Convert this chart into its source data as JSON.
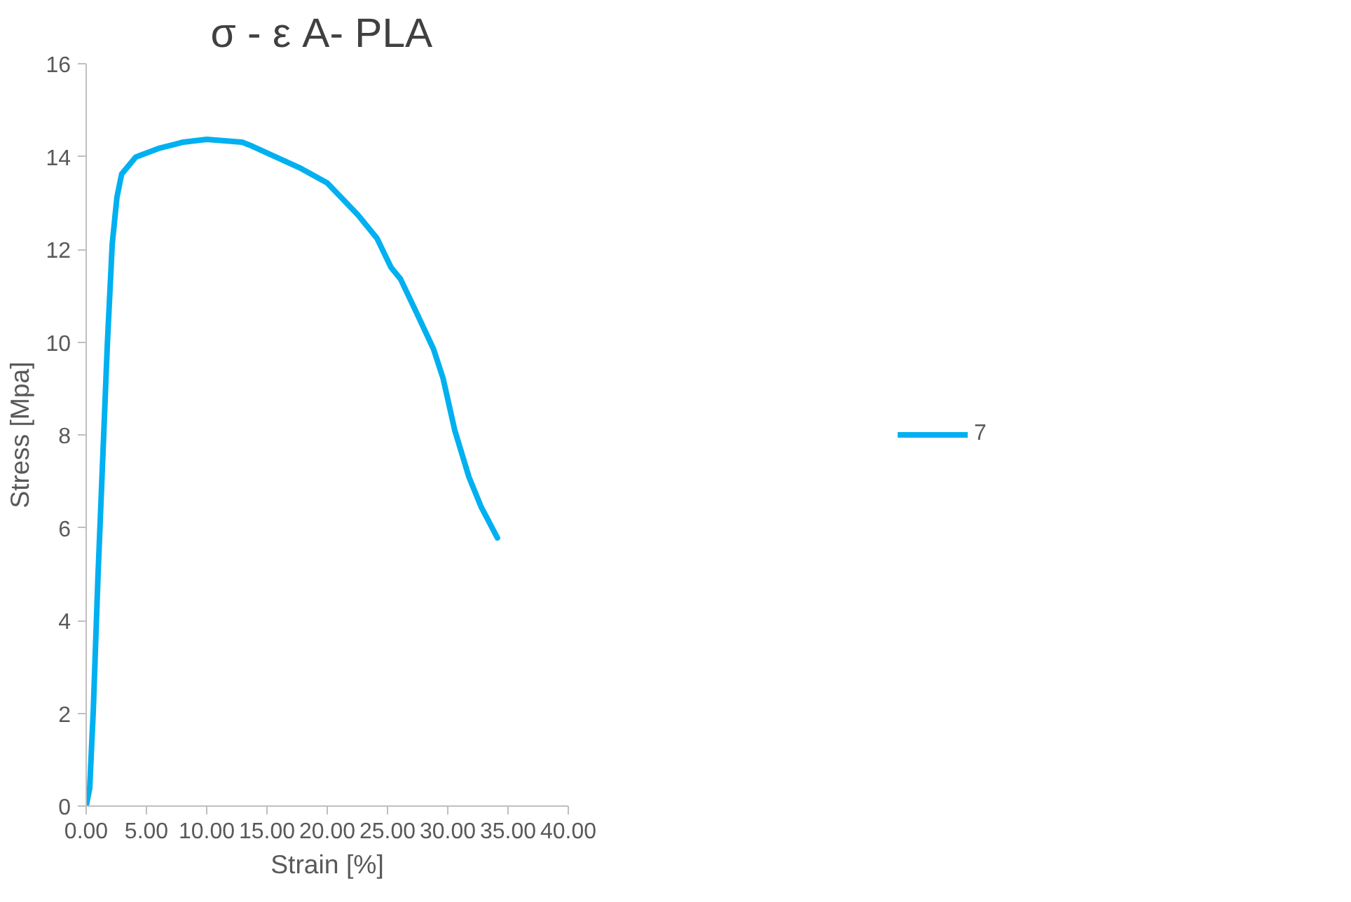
{
  "chart_data": {
    "type": "line",
    "title": "σ - ε  A- PLA",
    "xlabel": "Strain [%]",
    "ylabel": "Stress [Mpa]",
    "xlim": [
      0,
      40
    ],
    "ylim": [
      0,
      16
    ],
    "xticks": [
      {
        "value": 0,
        "label": "0.00"
      },
      {
        "value": 5,
        "label": "5.00"
      },
      {
        "value": 10,
        "label": "10.00"
      },
      {
        "value": 15,
        "label": "15.00"
      },
      {
        "value": 20,
        "label": "20.00"
      },
      {
        "value": 25,
        "label": "25.00"
      },
      {
        "value": 30,
        "label": "30.00"
      },
      {
        "value": 35,
        "label": "35.00"
      },
      {
        "value": 40,
        "label": "40.00"
      }
    ],
    "yticks": [
      0,
      2,
      4,
      6,
      8,
      10,
      12,
      14,
      16
    ],
    "grid": false,
    "legend": "right",
    "marker": "none",
    "line_style": "solid",
    "series": [
      {
        "name": "7",
        "color": "#00b0f0",
        "x": [
          0,
          0.29,
          0.59,
          0.98,
          1.37,
          1.76,
          2.16,
          2.55,
          2.94,
          4.12,
          6.08,
          8.04,
          10.0,
          12.94,
          13.53,
          17.84,
          20.0,
          22.55,
          24.12,
          25.29,
          26.08,
          27.45,
          28.82,
          29.61,
          30.59,
          31.76,
          32.75,
          34.12
        ],
        "values": [
          0,
          0.38,
          2.07,
          4.96,
          7.47,
          9.98,
          12.11,
          13.12,
          13.62,
          13.99,
          14.18,
          14.31,
          14.37,
          14.31,
          14.25,
          13.74,
          13.43,
          12.74,
          12.24,
          11.61,
          11.36,
          10.61,
          9.85,
          9.22,
          8.09,
          7.09,
          6.46,
          5.78
        ]
      }
    ]
  }
}
